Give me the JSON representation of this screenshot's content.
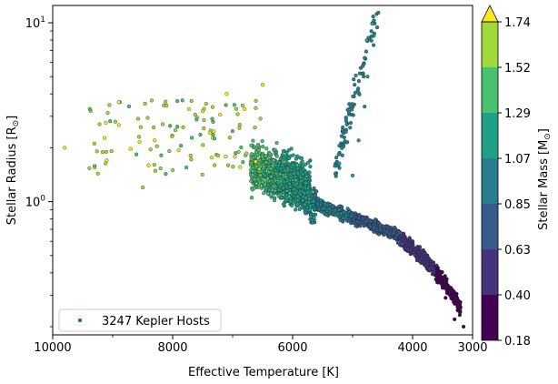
{
  "chart_data": {
    "type": "scatter",
    "xlabel": "Effective Temperature [K]",
    "ylabel_main": "Stellar Radius [R",
    "ylabel_sub": "⊙",
    "ylabel_close": "]",
    "x_reversed": true,
    "xlim": [
      10000,
      3000
    ],
    "xticks": [
      10000,
      8000,
      6000,
      4000,
      3000
    ],
    "xtick_labels": [
      "10000",
      "8000",
      "6000",
      "4000",
      "3000"
    ],
    "y_scale": "log",
    "ylim": [
      0.18,
      12.5
    ],
    "yticks": [
      1,
      10
    ],
    "ytick_main": [
      "10",
      "10"
    ],
    "ytick_exp": [
      "0",
      "1"
    ],
    "legend": {
      "label": "3247 Kepler Hosts",
      "position": "lower-left"
    },
    "colorbar": {
      "label_main": "Stellar Mass [M",
      "label_sub": "⊙",
      "label_close": "]",
      "ticks": [
        "0.18",
        "0.40",
        "0.63",
        "0.85",
        "1.07",
        "1.29",
        "1.52",
        "1.74"
      ],
      "colors": [
        "#440154",
        "#46337e",
        "#365c8d",
        "#277f8e",
        "#1fa187",
        "#4ac16d",
        "#a0da39",
        "#fde725"
      ],
      "extend": "max"
    },
    "series": [
      {
        "name": "3247 Kepler Hosts",
        "trend": [
          {
            "x": 9800,
            "y": 2.0,
            "m": 1.75
          },
          {
            "x": 9300,
            "y": 1.55,
            "m": 1.74
          },
          {
            "x": 9100,
            "y": 1.7,
            "m": 1.75
          },
          {
            "x": 8500,
            "y": 1.2,
            "m": 1.7
          },
          {
            "x": 8300,
            "y": 2.2,
            "m": 1.74
          },
          {
            "x": 8000,
            "y": 1.5,
            "m": 1.72
          },
          {
            "x": 7500,
            "y": 3.2,
            "m": 1.75
          },
          {
            "x": 7300,
            "y": 1.6,
            "m": 1.7
          },
          {
            "x": 7100,
            "y": 4.0,
            "m": 1.76
          },
          {
            "x": 6800,
            "y": 3.3,
            "m": 1.74
          },
          {
            "x": 6500,
            "y": 4.5,
            "m": 1.75
          },
          {
            "x": 6900,
            "y": 1.9,
            "m": 1.6
          },
          {
            "x": 6600,
            "y": 1.5,
            "m": 1.45
          },
          {
            "x": 6300,
            "y": 1.4,
            "m": 1.3
          },
          {
            "x": 6100,
            "y": 1.25,
            "m": 1.18
          },
          {
            "x": 5900,
            "y": 1.05,
            "m": 1.05
          },
          {
            "x": 5700,
            "y": 0.95,
            "m": 0.97
          },
          {
            "x": 5500,
            "y": 0.88,
            "m": 0.92
          },
          {
            "x": 5200,
            "y": 0.8,
            "m": 0.85
          },
          {
            "x": 4900,
            "y": 0.74,
            "m": 0.78
          },
          {
            "x": 4600,
            "y": 0.7,
            "m": 0.72
          },
          {
            "x": 4300,
            "y": 0.66,
            "m": 0.65
          },
          {
            "x": 4000,
            "y": 0.6,
            "m": 0.58
          },
          {
            "x": 3800,
            "y": 0.52,
            "m": 0.5
          },
          {
            "x": 3600,
            "y": 0.44,
            "m": 0.43
          },
          {
            "x": 3500,
            "y": 0.33,
            "m": 0.35
          },
          {
            "x": 3450,
            "y": 0.29,
            "m": 0.3
          },
          {
            "x": 3300,
            "y": 0.22,
            "m": 0.22
          },
          {
            "x": 3150,
            "y": 0.2,
            "m": 0.2
          },
          {
            "x": 5000,
            "y": 1.4,
            "m": 1.15
          },
          {
            "x": 4900,
            "y": 2.2,
            "m": 1.1
          },
          {
            "x": 4800,
            "y": 3.4,
            "m": 1.05
          },
          {
            "x": 4750,
            "y": 5.0,
            "m": 1.1
          },
          {
            "x": 4650,
            "y": 7.5,
            "m": 1.05
          },
          {
            "x": 4600,
            "y": 11.2,
            "m": 1.0
          }
        ]
      }
    ]
  }
}
